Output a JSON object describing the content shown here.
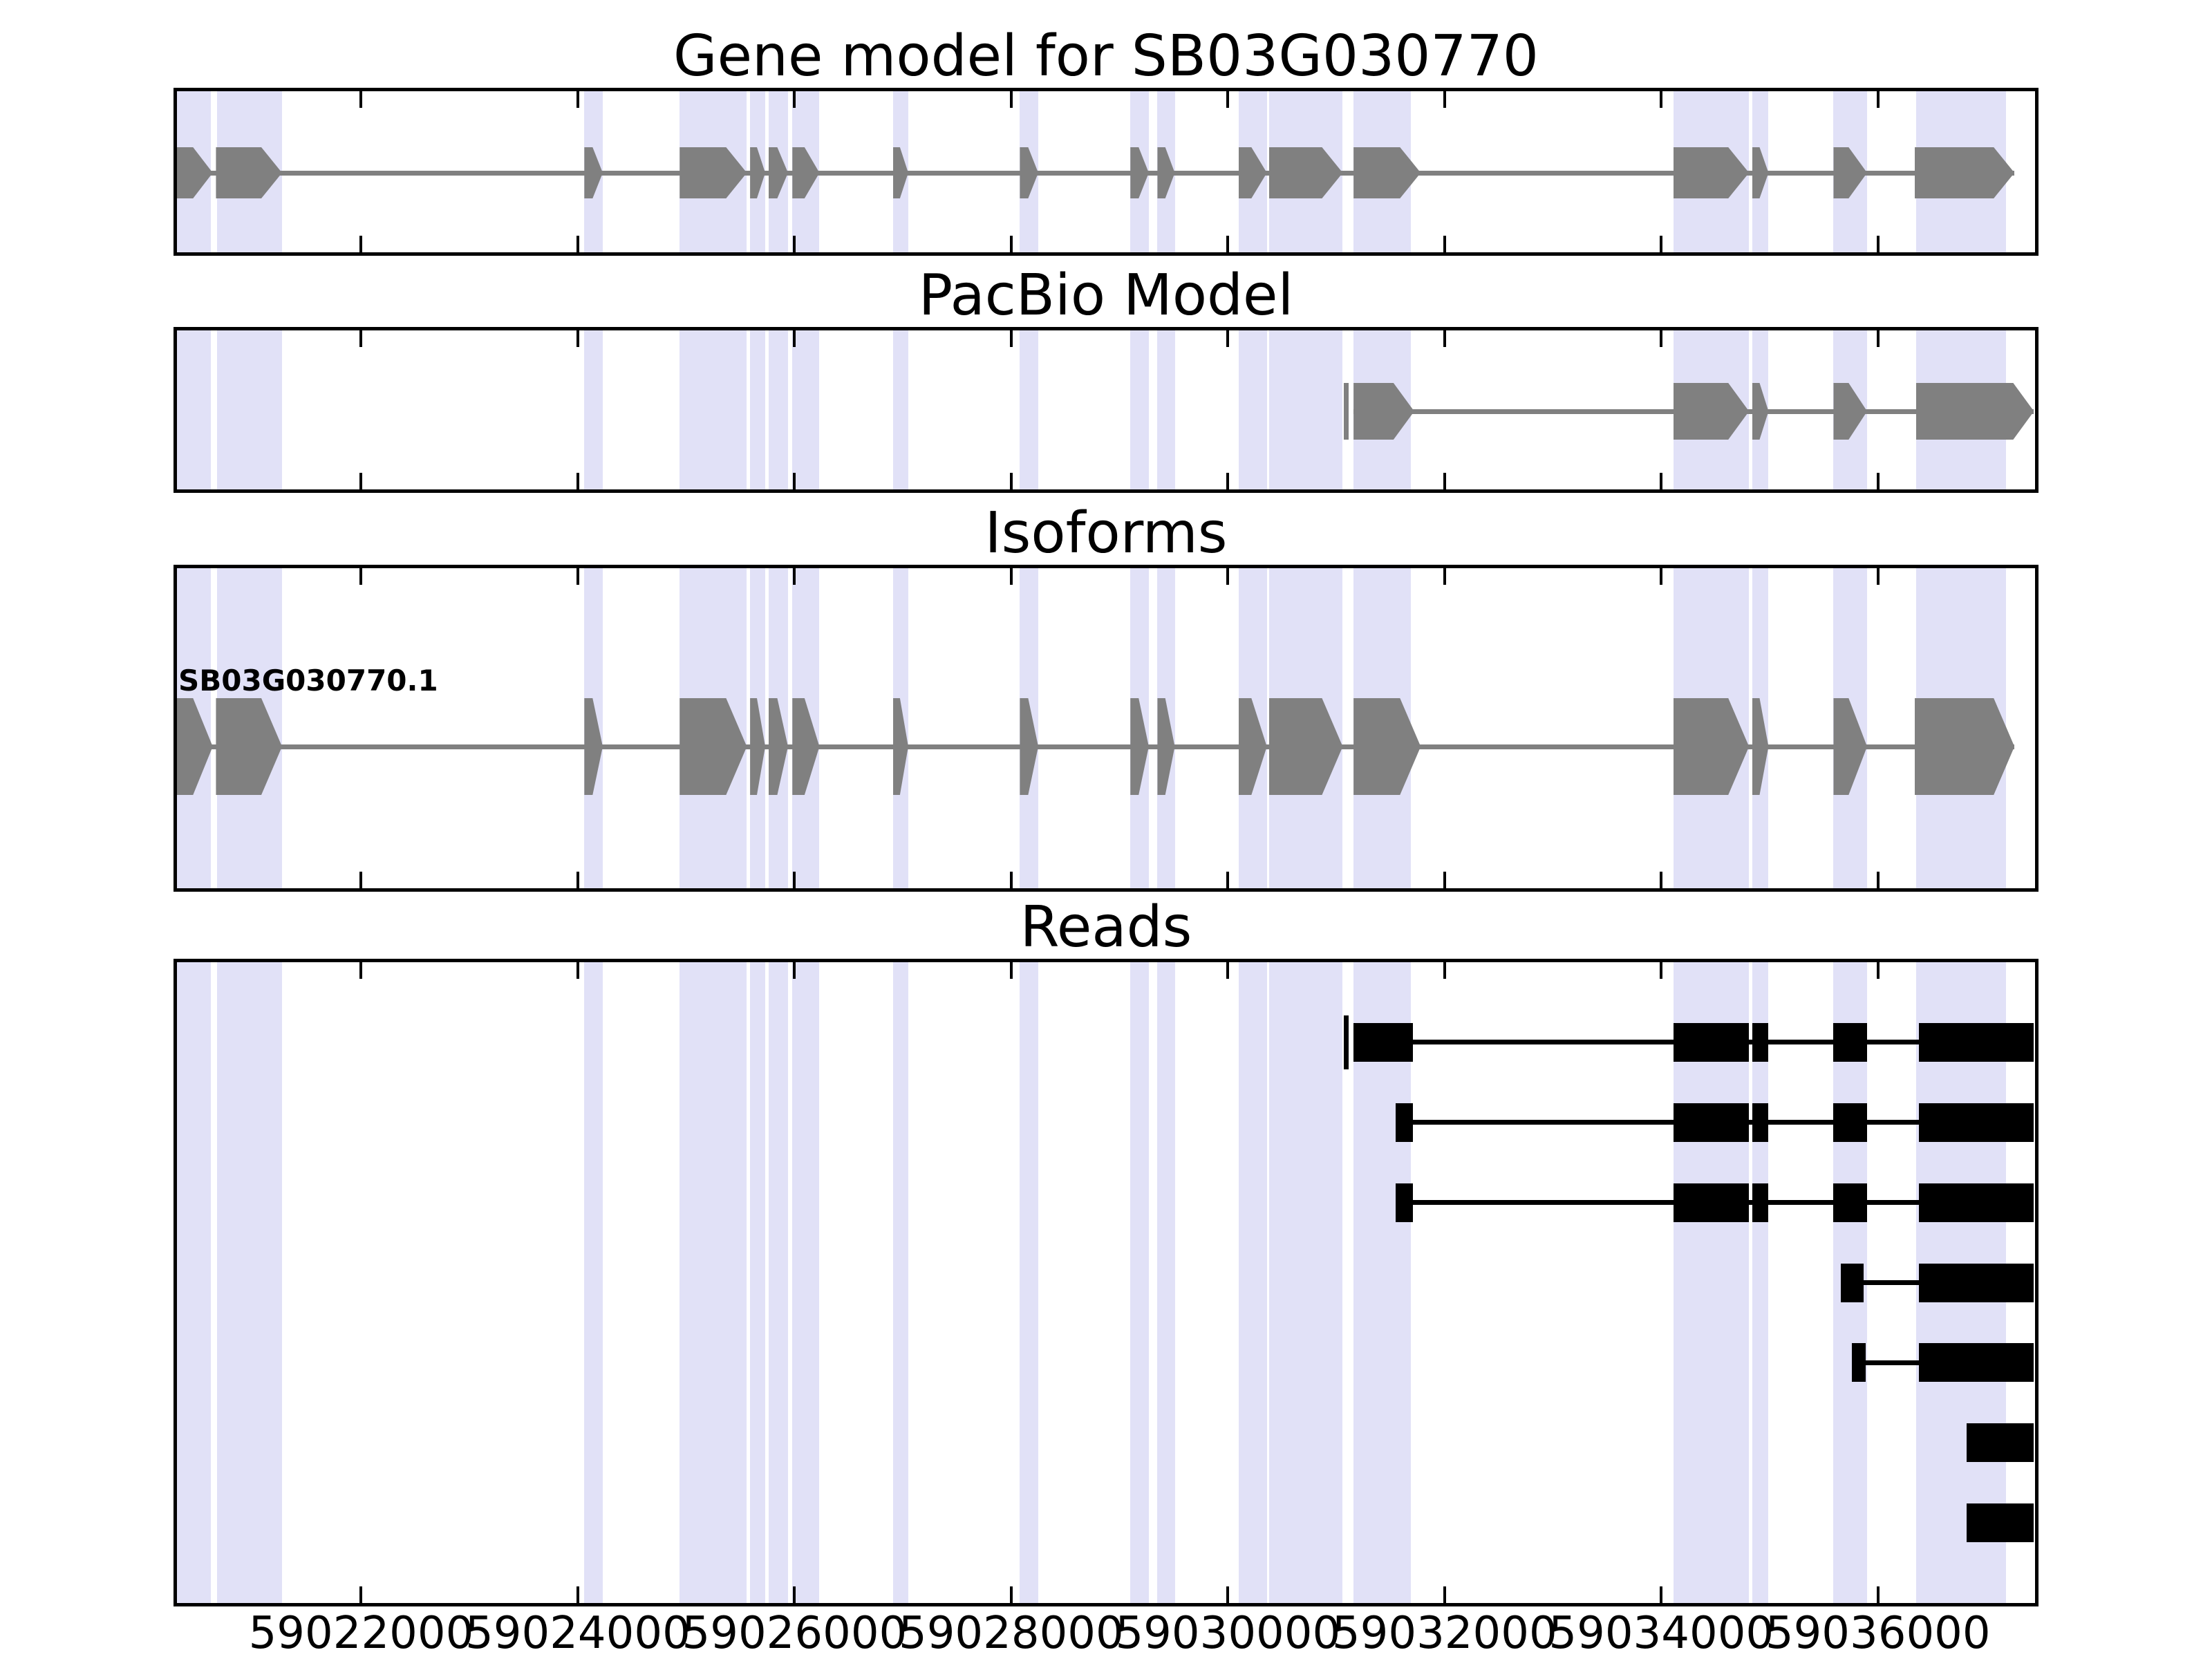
{
  "chart_data": {
    "type": "gene-model-tracks",
    "title": "Gene model for SB03G030770",
    "panel_titles": {
      "pacbio": "PacBio Model",
      "isoforms": "Isoforms",
      "reads": "Reads"
    },
    "axis": {
      "xmin": 59020300,
      "xmax": 59037450,
      "ticks": [
        59022000,
        59024000,
        59026000,
        59028000,
        59030000,
        59032000,
        59034000,
        59036000
      ],
      "tick_labels": [
        "59022000",
        "59024000",
        "59026000",
        "59028000",
        "59030000",
        "59032000",
        "59034000",
        "59036000"
      ],
      "grid": false,
      "tick_direction": "in"
    },
    "highlight_regions": [
      [
        59020300,
        59020610
      ],
      [
        59020670,
        59021270
      ],
      [
        59024060,
        59024230
      ],
      [
        59024940,
        59025560
      ],
      [
        59025590,
        59025730
      ],
      [
        59025760,
        59025940
      ],
      [
        59025980,
        59026230
      ],
      [
        59026910,
        59027050
      ],
      [
        59028080,
        59028250
      ],
      [
        59029100,
        59029270
      ],
      [
        59029350,
        59029510
      ],
      [
        59030100,
        59030360
      ],
      [
        59030380,
        59031060
      ],
      [
        59031160,
        59031690
      ],
      [
        59034110,
        59034810
      ],
      [
        59034840,
        59034990
      ],
      [
        59035590,
        59035900
      ],
      [
        59036350,
        59037180
      ]
    ],
    "gene_model": {
      "strand": "+",
      "exons": [
        [
          59020300,
          59020630
        ],
        [
          59020660,
          59021270
        ],
        [
          59024060,
          59024230
        ],
        [
          59024940,
          59025560
        ],
        [
          59025590,
          59025730
        ],
        [
          59025760,
          59025940
        ],
        [
          59025980,
          59026230
        ],
        [
          59026910,
          59027050
        ],
        [
          59028080,
          59028250
        ],
        [
          59029100,
          59029270
        ],
        [
          59029350,
          59029510
        ],
        [
          59030100,
          59030360
        ],
        [
          59030380,
          59031060
        ],
        [
          59031160,
          59031780
        ],
        [
          59034110,
          59034810
        ],
        [
          59034840,
          59034990
        ],
        [
          59035590,
          59035900
        ],
        [
          59036340,
          59037260
        ]
      ]
    },
    "pacbio_model": {
      "strand": "+",
      "start_marker": [
        59031070,
        59031115
      ],
      "exons": [
        [
          59031160,
          59031720
        ],
        [
          59034110,
          59034810
        ],
        [
          59034840,
          59034990
        ],
        [
          59035590,
          59035900
        ],
        [
          59036350,
          59037440
        ]
      ]
    },
    "isoforms": [
      {
        "label": "SB03G030770.1",
        "strand": "+",
        "exons": [
          [
            59020300,
            59020630
          ],
          [
            59020660,
            59021270
          ],
          [
            59024060,
            59024230
          ],
          [
            59024940,
            59025560
          ],
          [
            59025590,
            59025730
          ],
          [
            59025760,
            59025940
          ],
          [
            59025980,
            59026230
          ],
          [
            59026910,
            59027050
          ],
          [
            59028080,
            59028250
          ],
          [
            59029100,
            59029270
          ],
          [
            59029350,
            59029510
          ],
          [
            59030100,
            59030360
          ],
          [
            59030380,
            59031060
          ],
          [
            59031160,
            59031780
          ],
          [
            59034110,
            59034810
          ],
          [
            59034840,
            59034990
          ],
          [
            59035590,
            59035900
          ],
          [
            59036340,
            59037260
          ]
        ]
      }
    ],
    "reads": [
      {
        "start_tick": [
          59031070,
          59031115
        ],
        "blocks": [
          [
            59031160,
            59031710
          ],
          [
            59034110,
            59034810
          ],
          [
            59034840,
            59034990
          ],
          [
            59035590,
            59035900
          ],
          [
            59036380,
            59037440
          ]
        ]
      },
      {
        "blocks": [
          [
            59031550,
            59031710
          ],
          [
            59034110,
            59034810
          ],
          [
            59034840,
            59034990
          ],
          [
            59035590,
            59035900
          ],
          [
            59036380,
            59037440
          ]
        ]
      },
      {
        "blocks": [
          [
            59031550,
            59031710
          ],
          [
            59034110,
            59034810
          ],
          [
            59034840,
            59034990
          ],
          [
            59035590,
            59035900
          ],
          [
            59036380,
            59037440
          ]
        ]
      },
      {
        "blocks": [
          [
            59035660,
            59035870
          ],
          [
            59036380,
            59037440
          ]
        ]
      },
      {
        "blocks": [
          [
            59035760,
            59035890
          ],
          [
            59036380,
            59037440
          ]
        ]
      },
      {
        "blocks": [
          [
            59036820,
            59037440
          ]
        ]
      },
      {
        "blocks": [
          [
            59036820,
            59037440
          ]
        ]
      }
    ],
    "colors": {
      "exon": "#808080",
      "intron_line": "#808080",
      "highlight": "#e1e1f7",
      "read": "#000000",
      "axis_border": "#000000",
      "background": "#ffffff"
    },
    "legend_position": "none"
  }
}
